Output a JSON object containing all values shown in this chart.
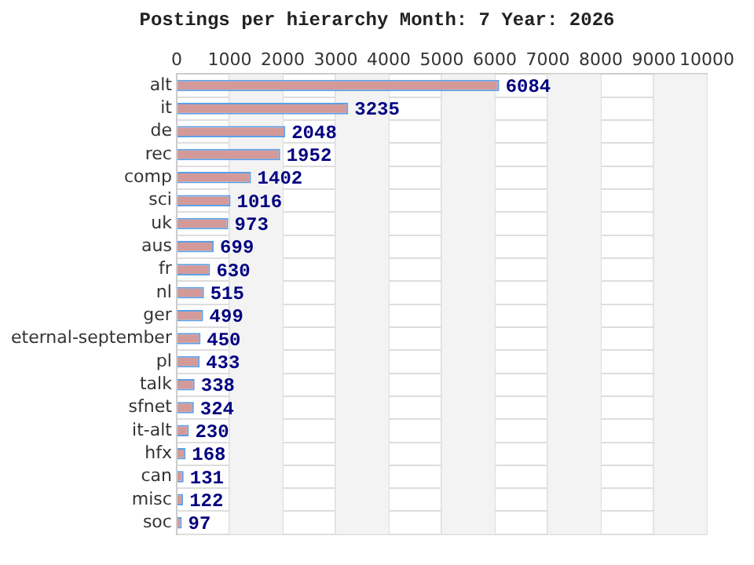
{
  "chart_data": {
    "type": "bar",
    "orientation": "horizontal",
    "title": "Postings per hierarchy Month: 7 Year: 2026",
    "categories": [
      "alt",
      "it",
      "de",
      "rec",
      "comp",
      "sci",
      "uk",
      "aus",
      "fr",
      "nl",
      "ger",
      "eternal-september",
      "pl",
      "talk",
      "sfnet",
      "it-alt",
      "hfx",
      "can",
      "misc",
      "soc"
    ],
    "values": [
      6084,
      3235,
      2048,
      1952,
      1402,
      1016,
      973,
      699,
      630,
      515,
      499,
      450,
      433,
      338,
      324,
      230,
      168,
      131,
      122,
      97
    ],
    "color": "#d49a9a",
    "xlim": [
      0,
      10000
    ],
    "xticks": [
      0,
      1000,
      2000,
      3000,
      4000,
      5000,
      6000,
      7000,
      8000,
      9000,
      10000
    ],
    "grid": true,
    "data_labels": true,
    "legend": false
  }
}
